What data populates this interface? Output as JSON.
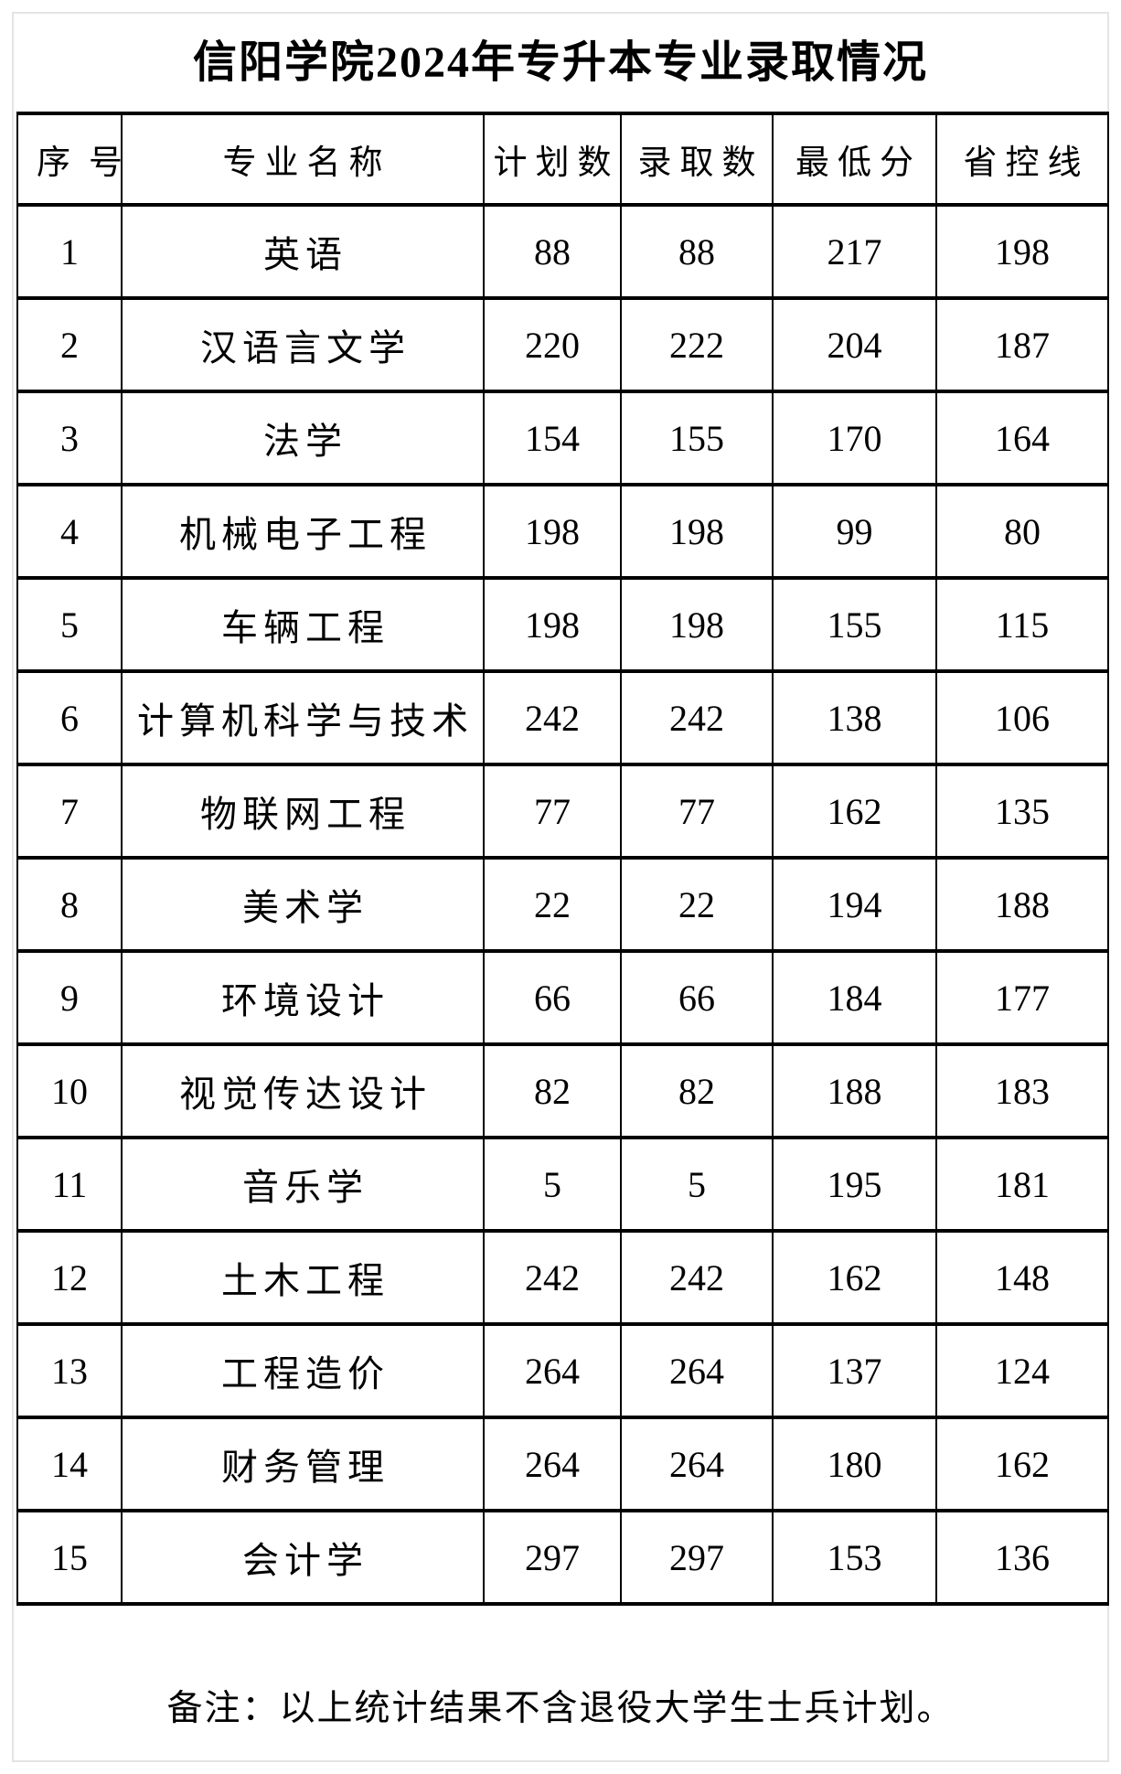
{
  "title": "信阳学院2024年专升本专业录取情况",
  "table": {
    "headers": [
      "序号",
      "专业名称",
      "计划数",
      "录取数",
      "最低分",
      "省控线"
    ],
    "rows": [
      {
        "no": "1",
        "major": "英语",
        "plan": "88",
        "admitted": "88",
        "min_score": "217",
        "province_line": "198"
      },
      {
        "no": "2",
        "major": "汉语言文学",
        "plan": "220",
        "admitted": "222",
        "min_score": "204",
        "province_line": "187"
      },
      {
        "no": "3",
        "major": "法学",
        "plan": "154",
        "admitted": "155",
        "min_score": "170",
        "province_line": "164"
      },
      {
        "no": "4",
        "major": "机械电子工程",
        "plan": "198",
        "admitted": "198",
        "min_score": "99",
        "province_line": "80"
      },
      {
        "no": "5",
        "major": "车辆工程",
        "plan": "198",
        "admitted": "198",
        "min_score": "155",
        "province_line": "115"
      },
      {
        "no": "6",
        "major": "计算机科学与技术",
        "plan": "242",
        "admitted": "242",
        "min_score": "138",
        "province_line": "106"
      },
      {
        "no": "7",
        "major": "物联网工程",
        "plan": "77",
        "admitted": "77",
        "min_score": "162",
        "province_line": "135"
      },
      {
        "no": "8",
        "major": "美术学",
        "plan": "22",
        "admitted": "22",
        "min_score": "194",
        "province_line": "188"
      },
      {
        "no": "9",
        "major": "环境设计",
        "plan": "66",
        "admitted": "66",
        "min_score": "184",
        "province_line": "177"
      },
      {
        "no": "10",
        "major": "视觉传达设计",
        "plan": "82",
        "admitted": "82",
        "min_score": "188",
        "province_line": "183"
      },
      {
        "no": "11",
        "major": "音乐学",
        "plan": "5",
        "admitted": "5",
        "min_score": "195",
        "province_line": "181"
      },
      {
        "no": "12",
        "major": "土木工程",
        "plan": "242",
        "admitted": "242",
        "min_score": "162",
        "province_line": "148"
      },
      {
        "no": "13",
        "major": "工程造价",
        "plan": "264",
        "admitted": "264",
        "min_score": "137",
        "province_line": "124"
      },
      {
        "no": "14",
        "major": "财务管理",
        "plan": "264",
        "admitted": "264",
        "min_score": "180",
        "province_line": "162"
      },
      {
        "no": "15",
        "major": "会计学",
        "plan": "297",
        "admitted": "297",
        "min_score": "153",
        "province_line": "136"
      }
    ]
  },
  "note": "备注：以上统计结果不含退役大学生士兵计划。",
  "colors": {
    "text": "#000000",
    "background": "#ffffff",
    "table_border": "#000000",
    "frame_border": "#e4e4e4"
  }
}
